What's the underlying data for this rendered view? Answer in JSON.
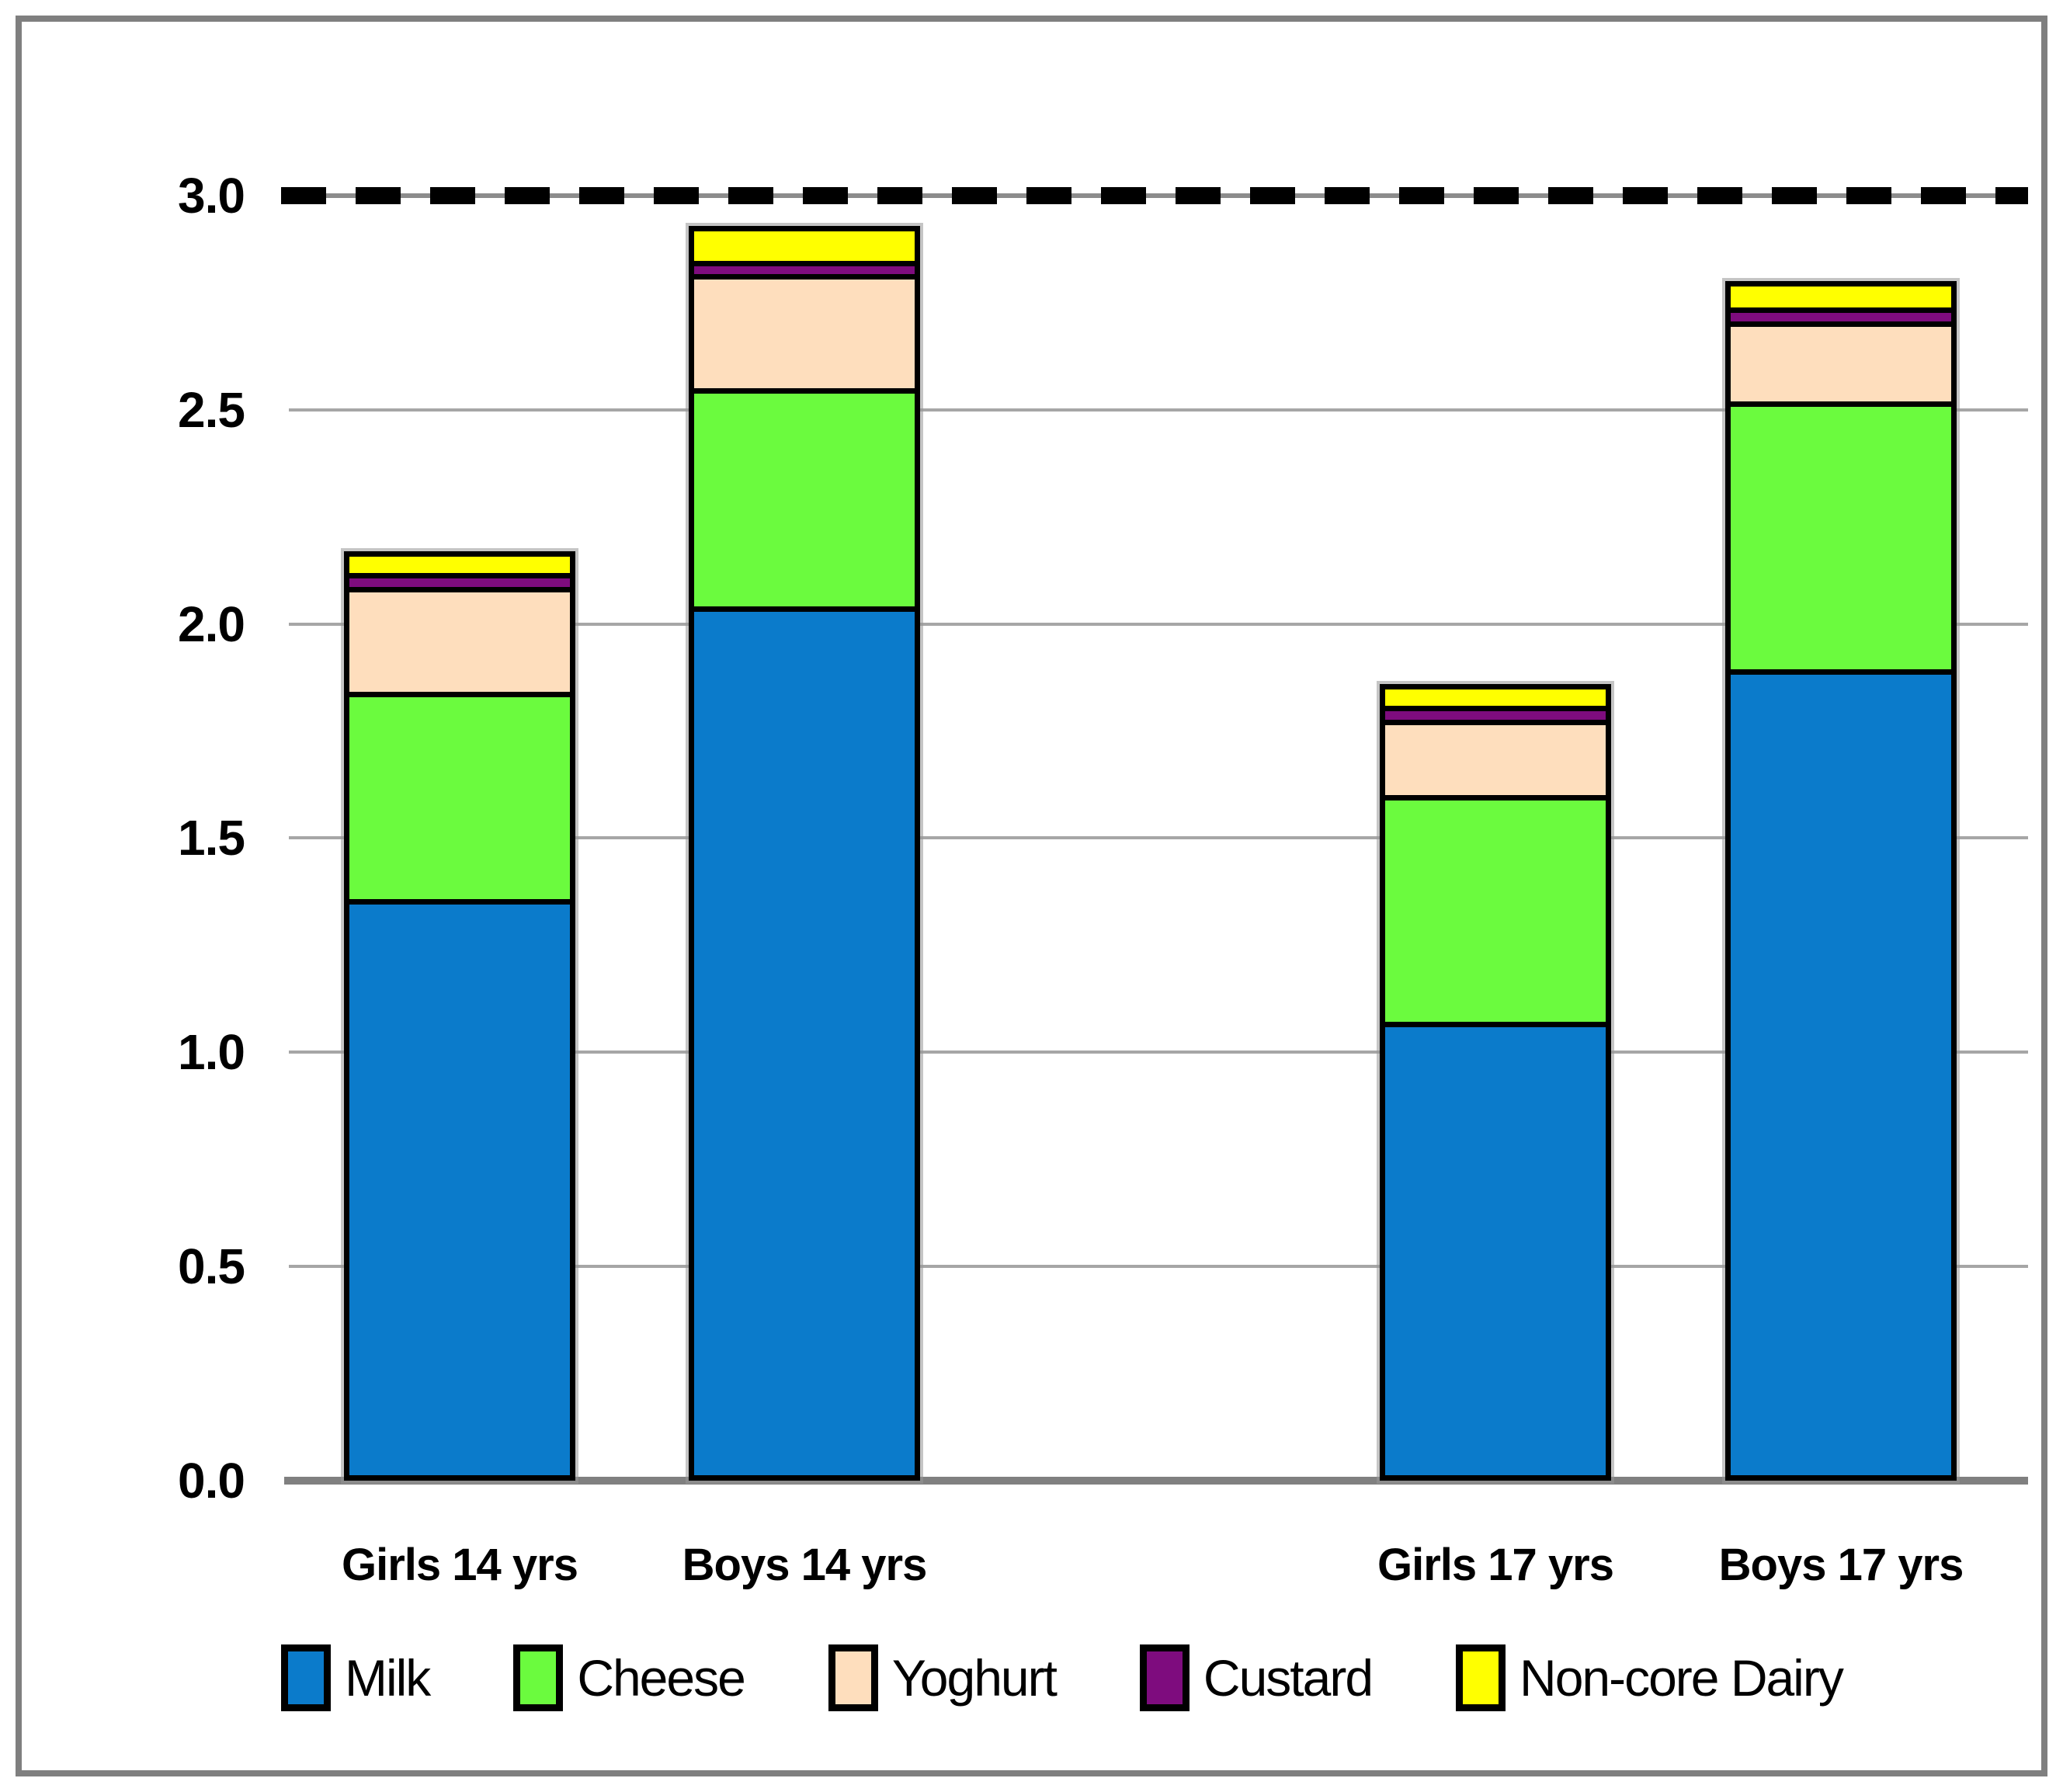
{
  "figure": {
    "background": "#ffffff",
    "frame_color": "#7f7f7f"
  },
  "y_axis": {
    "tick_labels": [
      "3.0",
      "2.5",
      "2.0",
      "1.5",
      "1.0",
      "0.5",
      "0.0"
    ],
    "min": 0,
    "max": 3,
    "tick_step": 0.5
  },
  "x_axis": {
    "labels": [
      "Girls 14 yrs",
      "Boys 14 yrs",
      "Girls 17 yrs",
      "Boys 17 yrs"
    ]
  },
  "reference_line": {
    "value": 3.0,
    "style": "dashed",
    "color": "#000000"
  },
  "legend": [
    {
      "label": "Milk",
      "color": "#0b7bcb"
    },
    {
      "label": "Cheese",
      "color": "#6bfb3e"
    },
    {
      "label": "Yoghurt",
      "color": "#fedebd"
    },
    {
      "label": "Custard",
      "color": "#7e0c7e"
    },
    {
      "label": "Non-core Dairy",
      "color": "#ffff00"
    }
  ],
  "chart_data": {
    "type": "bar",
    "stacked": true,
    "title": "",
    "xlabel": "",
    "ylabel": "",
    "ylim": [
      0,
      3
    ],
    "grid": true,
    "legend_position": "bottom",
    "reference_line_y": 3.0,
    "categories": [
      "Girls 14 yrs",
      "Boys 14 yrs",
      "Girls 17 yrs",
      "Boys 17 yrs"
    ],
    "series": [
      {
        "name": "Milk",
        "color": "#0b7bcb",
        "values": [
          1.38,
          2.07,
          1.09,
          1.92
        ]
      },
      {
        "name": "Cheese",
        "color": "#6bfb3e",
        "values": [
          0.49,
          0.51,
          0.54,
          0.63
        ]
      },
      {
        "name": "Yoghurt",
        "color": "#fedebd",
        "values": [
          0.24,
          0.26,
          0.17,
          0.18
        ]
      },
      {
        "name": "Custard",
        "color": "#7e0c7e",
        "values": [
          0.02,
          0.02,
          0.02,
          0.02
        ]
      },
      {
        "name": "Non-core Dairy",
        "color": "#ffff00",
        "values": [
          0.04,
          0.07,
          0.04,
          0.05
        ]
      }
    ],
    "stack_totals": [
      2.17,
      2.93,
      1.86,
      2.8
    ]
  }
}
